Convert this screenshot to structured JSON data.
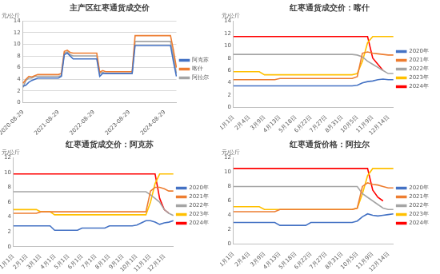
{
  "chart_data": [
    {
      "type": "line",
      "title": "主产区红枣通货成交价",
      "y_label": "元/公斤",
      "categories": [
        "2020-08-29",
        null,
        null,
        null,
        null,
        null,
        null,
        null,
        null,
        null,
        null,
        null,
        "2021-08-29",
        null,
        null,
        null,
        null,
        null,
        null,
        null,
        null,
        null,
        null,
        null,
        "2022-08-29",
        null,
        null,
        null,
        null,
        null,
        null,
        null,
        null,
        null,
        null,
        null,
        "2023-08-29",
        null,
        null,
        null,
        null,
        null,
        null,
        null,
        null,
        null,
        null,
        null,
        "2024-08-29",
        null,
        null,
        null,
        null
      ],
      "series": [
        {
          "name": "阿克苏",
          "color": "#4472c4",
          "values": [
            2.8,
            3.0,
            3.5,
            3.8,
            4.0,
            4.2,
            4.2,
            4.2,
            4.2,
            4.2,
            4.2,
            4.2,
            4.2,
            4.5,
            8.2,
            8.5,
            8.0,
            7.5,
            7.5,
            7.5,
            7.5,
            7.5,
            7.5,
            7.5,
            7.5,
            7.5,
            4.5,
            5.0,
            5.0,
            5.0,
            5.0,
            5.0,
            5.0,
            5.0,
            5.0,
            5.0,
            5.0,
            5.0,
            9.8,
            9.8,
            9.8,
            9.8,
            9.8,
            9.8,
            9.8,
            9.8,
            9.8,
            9.8,
            9.8,
            9.8,
            9.8,
            7.0,
            4.5
          ]
        },
        {
          "name": "喀什",
          "color": "#ed7d31",
          "values": [
            3.3,
            4.0,
            4.5,
            4.4,
            4.6,
            4.8,
            4.8,
            4.8,
            4.8,
            4.8,
            4.8,
            4.8,
            4.8,
            5.0,
            8.8,
            9.0,
            8.6,
            8.5,
            8.5,
            8.5,
            8.5,
            8.5,
            8.5,
            8.5,
            8.5,
            8.5,
            5.2,
            5.5,
            5.3,
            5.3,
            5.3,
            5.3,
            5.3,
            5.3,
            5.3,
            5.3,
            5.3,
            5.3,
            11.5,
            11.5,
            11.5,
            11.5,
            11.5,
            11.5,
            11.5,
            11.5,
            11.5,
            11.5,
            11.5,
            11.5,
            11.5,
            9.0,
            6.0
          ]
        },
        {
          "name": "阿拉尔",
          "color": "#a5a5a5",
          "values": [
            2.6,
            3.8,
            4.2,
            4.2,
            4.5,
            4.5,
            4.5,
            4.5,
            4.5,
            4.5,
            4.5,
            4.5,
            4.5,
            4.6,
            8.5,
            8.7,
            8.2,
            8.0,
            8.0,
            8.0,
            8.0,
            8.0,
            8.0,
            8.0,
            8.0,
            8.0,
            5.0,
            5.2,
            5.0,
            5.0,
            5.0,
            5.0,
            5.0,
            5.0,
            5.0,
            5.0,
            5.0,
            5.0,
            10.5,
            10.5,
            10.5,
            10.5,
            10.5,
            10.5,
            10.5,
            10.5,
            10.5,
            10.5,
            10.5,
            10.5,
            10.5,
            8.0,
            5.0
          ]
        }
      ],
      "ylim": [
        0,
        14
      ],
      "yticks": [
        0,
        2,
        4,
        6,
        8,
        10,
        12,
        14
      ],
      "grid": true,
      "legend": "right"
    },
    {
      "type": "line",
      "title": "红枣通货成交价：喀什",
      "y_label": "元/公斤",
      "categories": [
        "1月1日",
        null,
        null,
        "2月4日",
        null,
        null,
        "3月9日",
        null,
        null,
        "4月13日",
        null,
        null,
        "5月18日",
        null,
        null,
        "6月22日",
        null,
        null,
        "7月27日",
        null,
        null,
        "8月31日",
        null,
        null,
        "10月5日",
        null,
        null,
        "11月9日",
        null,
        null,
        "12月14日",
        null
      ],
      "series": [
        {
          "name": "2020年",
          "color": "#4472c4",
          "values": [
            3.5,
            3.5,
            3.5,
            3.5,
            3.5,
            3.5,
            3.5,
            3.5,
            3.5,
            3.5,
            3.5,
            3.5,
            3.5,
            3.5,
            3.5,
            3.5,
            3.5,
            3.5,
            3.5,
            3.5,
            3.5,
            3.5,
            3.5,
            3.5,
            3.6,
            4.0,
            4.2,
            4.3,
            4.5,
            4.6,
            4.5,
            4.5
          ]
        },
        {
          "name": "2021年",
          "color": "#ed7d31",
          "values": [
            4.5,
            4.5,
            4.5,
            4.5,
            4.5,
            4.5,
            4.5,
            4.5,
            4.5,
            4.7,
            4.7,
            4.7,
            4.7,
            4.7,
            4.7,
            4.7,
            4.7,
            4.7,
            4.7,
            4.7,
            4.7,
            4.7,
            4.7,
            4.7,
            5.0,
            8.8,
            9.0,
            8.8,
            8.7,
            8.6,
            8.5,
            8.5
          ]
        },
        {
          "name": "2022年",
          "color": "#a5a5a5",
          "values": [
            8.6,
            8.6,
            8.6,
            8.6,
            8.6,
            8.6,
            8.6,
            8.6,
            8.6,
            8.6,
            8.6,
            8.6,
            8.6,
            8.6,
            8.6,
            8.6,
            8.6,
            8.6,
            8.6,
            8.6,
            8.6,
            8.6,
            8.6,
            8.6,
            8.5,
            8.2,
            7.5,
            7.0,
            6.5,
            6.0,
            5.5,
            5.5
          ]
        },
        {
          "name": "2023年",
          "color": "#ffc000",
          "values": [
            5.8,
            5.8,
            5.8,
            5.8,
            5.8,
            5.8,
            5.3,
            5.3,
            5.3,
            5.3,
            5.3,
            5.3,
            5.3,
            5.3,
            5.3,
            5.3,
            5.3,
            5.3,
            5.3,
            5.3,
            5.3,
            5.3,
            5.3,
            5.3,
            5.5,
            7.5,
            10.5,
            11.5,
            11.5,
            11.5,
            11.5,
            11.5
          ]
        },
        {
          "name": "2024年",
          "color": "#ff0000",
          "values": [
            11.5,
            11.5,
            11.5,
            11.5,
            11.5,
            11.5,
            11.5,
            11.5,
            11.5,
            11.5,
            11.5,
            11.5,
            11.5,
            11.5,
            11.5,
            11.5,
            11.5,
            11.5,
            11.5,
            11.5,
            11.5,
            11.5,
            11.5,
            11.5,
            11.5,
            11.5,
            11.5,
            8.0,
            7.0,
            6.0,
            null,
            null
          ]
        }
      ],
      "ylim": [
        0,
        14
      ],
      "yticks": [
        0,
        2,
        4,
        6,
        8,
        10,
        12,
        14
      ],
      "grid": false,
      "legend": "right"
    },
    {
      "type": "line",
      "title": "红枣通货成交价：阿克苏",
      "y_label": "元/公斤",
      "categories": [
        "1月1日",
        null,
        null,
        "2月1日",
        null,
        null,
        "3月1日",
        null,
        null,
        "4月1日",
        null,
        null,
        "5月1日",
        null,
        null,
        "6月1日",
        null,
        null,
        "7月1日",
        null,
        null,
        "8月1日",
        null,
        null,
        "9月1日",
        null,
        null,
        "10月1日",
        null,
        null,
        "11月1日",
        null,
        null,
        "12月1日",
        null,
        null
      ],
      "series": [
        {
          "name": "2020年",
          "color": "#4472c4",
          "values": [
            2.8,
            2.8,
            2.8,
            2.8,
            2.8,
            2.8,
            2.8,
            2.8,
            2.8,
            2.2,
            2.2,
            2.2,
            2.2,
            2.2,
            2.2,
            2.5,
            2.5,
            2.5,
            2.5,
            2.5,
            2.5,
            2.8,
            2.8,
            2.8,
            2.8,
            2.8,
            2.8,
            2.9,
            3.2,
            3.5,
            3.5,
            3.3,
            3.0,
            3.2,
            3.3,
            3.5
          ]
        },
        {
          "name": "2021年",
          "color": "#ed7d31",
          "values": [
            4.5,
            4.5,
            4.5,
            4.5,
            4.5,
            4.5,
            4.7,
            4.7,
            4.7,
            4.7,
            4.7,
            4.7,
            4.7,
            4.7,
            4.7,
            4.7,
            4.7,
            4.7,
            4.7,
            4.7,
            4.7,
            4.7,
            4.7,
            4.7,
            4.7,
            4.7,
            4.7,
            4.7,
            4.7,
            4.7,
            7.5,
            8.0,
            8.0,
            7.8,
            7.5,
            7.5
          ]
        },
        {
          "name": "2022年",
          "color": "#a5a5a5",
          "values": [
            7.4,
            7.4,
            7.4,
            7.4,
            7.4,
            7.4,
            7.4,
            7.4,
            7.4,
            7.4,
            7.4,
            7.4,
            7.4,
            7.4,
            7.4,
            7.4,
            7.4,
            7.4,
            7.4,
            7.4,
            7.4,
            7.4,
            7.4,
            7.4,
            7.4,
            7.4,
            7.4,
            7.4,
            7.4,
            7.4,
            7.0,
            6.5,
            6.0,
            5.0,
            4.5,
            4.2
          ]
        },
        {
          "name": "2023年",
          "color": "#ffc000",
          "values": [
            5.0,
            5.0,
            5.0,
            5.0,
            5.0,
            5.0,
            4.7,
            4.7,
            4.7,
            4.3,
            4.3,
            4.3,
            4.3,
            4.3,
            4.3,
            4.3,
            4.3,
            4.3,
            4.3,
            4.3,
            4.3,
            4.3,
            4.3,
            4.3,
            4.3,
            4.3,
            4.3,
            4.3,
            4.3,
            4.3,
            6.0,
            8.5,
            9.8,
            9.8,
            9.8,
            9.8
          ]
        },
        {
          "name": "2024年",
          "color": "#ff0000",
          "values": [
            9.8,
            9.8,
            9.8,
            9.8,
            9.8,
            9.8,
            9.8,
            9.8,
            9.8,
            9.8,
            9.8,
            9.8,
            9.8,
            9.8,
            9.8,
            9.8,
            9.8,
            9.8,
            9.8,
            9.8,
            9.8,
            9.8,
            9.8,
            9.8,
            9.8,
            9.8,
            9.8,
            9.8,
            9.8,
            9.8,
            9.8,
            9.8,
            6.5,
            5.0,
            4.5,
            null
          ]
        }
      ],
      "ylim": [
        0,
        12
      ],
      "yticks": [
        0,
        2,
        4,
        6,
        8,
        10,
        12
      ],
      "grid": false,
      "legend": "right"
    },
    {
      "type": "line",
      "title": "红枣通货价格：阿拉尔",
      "y_label": "元/公斤",
      "categories": [
        "1月1日",
        null,
        null,
        "2月4日",
        null,
        null,
        "3月9日",
        null,
        null,
        "4月13日",
        null,
        null,
        "5月18日",
        null,
        null,
        "6月22日",
        null,
        null,
        "7月27日",
        null,
        null,
        "8月31日",
        null,
        null,
        "10月5日",
        null,
        null,
        "11月9日",
        null,
        null,
        "12月14日",
        null
      ],
      "series": [
        {
          "name": "2020年",
          "color": "#4472c4",
          "values": [
            3.0,
            3.0,
            3.0,
            3.0,
            3.0,
            3.0,
            3.0,
            3.0,
            3.0,
            2.6,
            2.6,
            2.6,
            2.6,
            2.6,
            2.6,
            3.0,
            3.0,
            3.0,
            3.0,
            3.0,
            3.0,
            3.0,
            3.0,
            3.0,
            3.2,
            3.8,
            4.2,
            4.0,
            3.9,
            4.0,
            4.1,
            4.2
          ]
        },
        {
          "name": "2021年",
          "color": "#ed7d31",
          "values": [
            4.5,
            4.5,
            4.5,
            4.5,
            4.5,
            4.5,
            4.5,
            4.5,
            4.5,
            4.8,
            4.8,
            4.8,
            4.8,
            4.8,
            4.8,
            4.8,
            4.8,
            4.8,
            4.8,
            4.8,
            4.8,
            4.8,
            4.8,
            4.8,
            5.0,
            8.0,
            8.5,
            8.3,
            8.2,
            8.0,
            7.8,
            7.8
          ]
        },
        {
          "name": "2022年",
          "color": "#a5a5a5",
          "values": [
            8.0,
            8.0,
            8.0,
            8.0,
            8.0,
            8.0,
            8.0,
            8.0,
            8.0,
            8.0,
            8.0,
            8.0,
            8.0,
            8.0,
            8.0,
            8.0,
            8.0,
            8.0,
            8.0,
            8.0,
            8.0,
            8.0,
            8.0,
            8.0,
            8.0,
            7.0,
            6.5,
            6.0,
            5.5,
            5.0,
            4.8,
            4.8
          ]
        },
        {
          "name": "2023年",
          "color": "#ffc000",
          "values": [
            5.2,
            5.2,
            5.2,
            5.2,
            5.2,
            5.2,
            4.8,
            4.8,
            4.8,
            4.8,
            4.8,
            4.8,
            4.8,
            4.8,
            4.8,
            4.8,
            4.8,
            4.8,
            4.8,
            4.8,
            4.8,
            4.8,
            4.8,
            4.8,
            5.0,
            7.0,
            9.5,
            10.5,
            10.5,
            10.5,
            10.5,
            10.5
          ]
        },
        {
          "name": "2024年",
          "color": "#ff0000",
          "values": [
            10.5,
            10.5,
            10.5,
            10.5,
            10.5,
            10.5,
            10.5,
            10.5,
            10.5,
            10.5,
            10.5,
            10.5,
            10.5,
            10.5,
            10.5,
            10.5,
            10.5,
            10.5,
            10.5,
            10.5,
            10.5,
            10.5,
            10.5,
            10.5,
            10.5,
            10.5,
            10.5,
            7.5,
            6.5,
            6.0,
            null,
            null
          ]
        }
      ],
      "ylim": [
        0,
        12
      ],
      "yticks": [
        0,
        2,
        4,
        6,
        8,
        10,
        12
      ],
      "grid": false,
      "legend": "right"
    }
  ]
}
